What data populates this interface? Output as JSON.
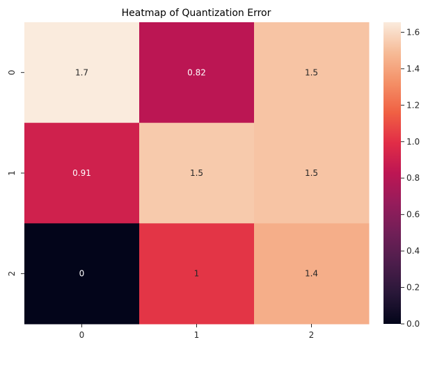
{
  "chart_data": {
    "type": "heatmap",
    "title": "Heatmap of Quantization Error",
    "xlabel": "",
    "ylabel": "",
    "x_categories": [
      "0",
      "1",
      "2"
    ],
    "y_categories": [
      "0",
      "1",
      "2"
    ],
    "values": [
      [
        1.66,
        0.82,
        1.52
      ],
      [
        0.91,
        1.54,
        1.52
      ],
      [
        0.0,
        1.02,
        1.44
      ]
    ],
    "annotations": [
      [
        "1.7",
        "0.82",
        "1.5"
      ],
      [
        "0.91",
        "1.5",
        "1.5"
      ],
      [
        "0",
        "1",
        "1.4"
      ]
    ],
    "colorbar": {
      "min": 0.0,
      "max": 1.655,
      "ticks": [
        "0.0",
        "0.2",
        "0.4",
        "0.6",
        "0.8",
        "1.0",
        "1.2",
        "1.4",
        "1.6"
      ],
      "colormap": "rocket"
    },
    "annotation_colors": {
      "dark_text": "#262626",
      "light_text": "#ffffff"
    }
  }
}
